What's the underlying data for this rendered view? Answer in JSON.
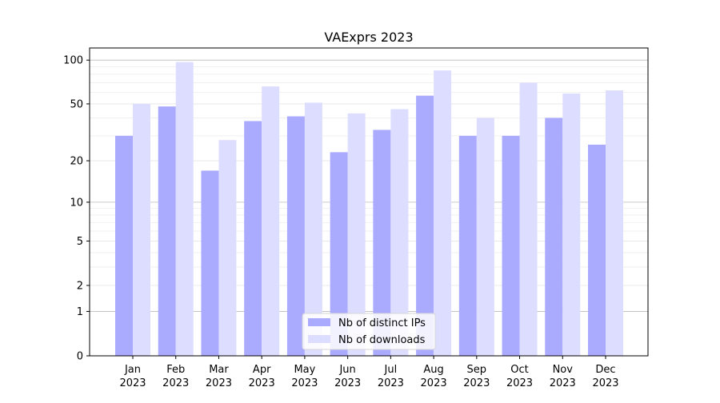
{
  "chart_data": {
    "type": "bar",
    "title": "VAExprs 2023",
    "xlabel": "",
    "ylabel": "",
    "yscale": "symlog (log10(y+1))",
    "ylim": [
      0,
      120
    ],
    "yticks": [
      0,
      1,
      2,
      5,
      10,
      20,
      50,
      100
    ],
    "grid": true,
    "legend_position": "bottom-center",
    "categories": [
      "Jan\n2023",
      "Feb\n2023",
      "Mar\n2023",
      "Apr\n2023",
      "May\n2023",
      "Jun\n2023",
      "Jul\n2023",
      "Aug\n2023",
      "Sep\n2023",
      "Oct\n2023",
      "Nov\n2023",
      "Dec\n2023"
    ],
    "series": [
      {
        "name": "Nb of distinct IPs",
        "color": "#aaaaff",
        "values": [
          30,
          48,
          17,
          38,
          41,
          23,
          33,
          57,
          30,
          30,
          40,
          26
        ]
      },
      {
        "name": "Nb of downloads",
        "color": "#ddddff",
        "values": [
          50,
          97,
          28,
          66,
          51,
          43,
          46,
          85,
          40,
          70,
          59,
          62
        ]
      }
    ]
  }
}
